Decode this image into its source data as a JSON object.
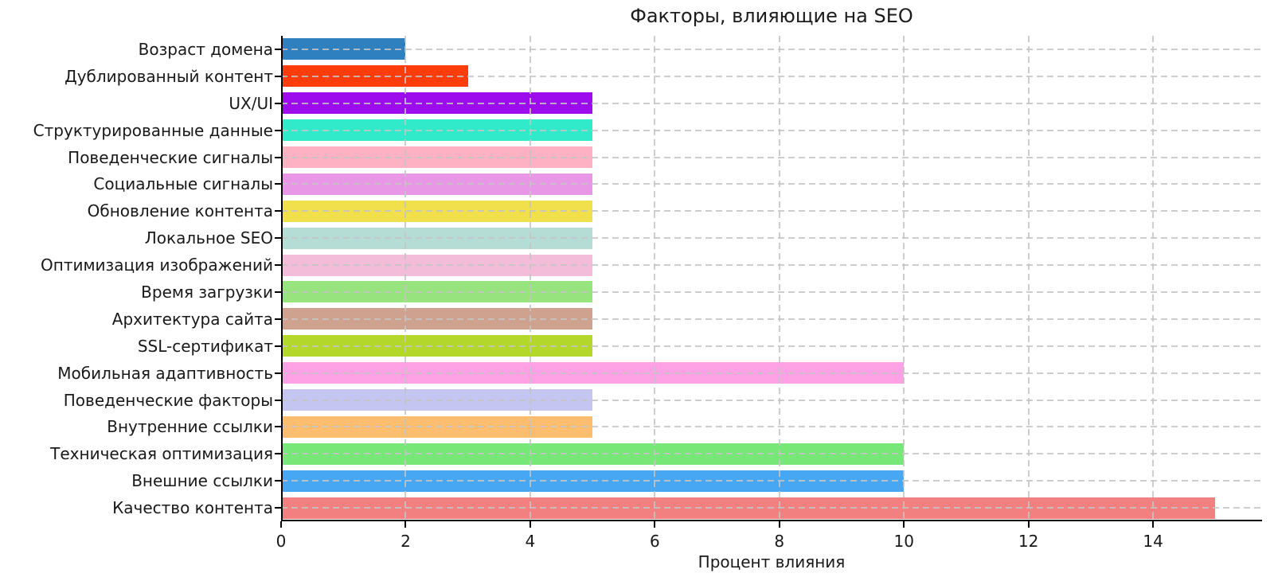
{
  "chart_data": {
    "type": "bar",
    "orientation": "horizontal",
    "title": "Факторы, влияющие на SEO",
    "xlabel": "Процент влияния",
    "ylabel": "",
    "xlim": [
      0,
      15.75
    ],
    "xticks": [
      0,
      2,
      4,
      6,
      8,
      10,
      12,
      14
    ],
    "grid": true,
    "grid_style": "dashed",
    "legend": "none",
    "categories_top_to_bottom": [
      "Возраст домена",
      "Дублированный контент",
      "UX/UI",
      "Структурированные данные",
      "Поведенческие сигналы",
      "Социальные сигналы",
      "Обновление контента",
      "Локальное SEO",
      "Оптимизация изображений",
      "Время загрузки",
      "Архитектура сайта",
      "SSL-сертификат",
      "Мобильная адаптивность",
      "Поведенческие факторы",
      "Внутренние ссылки",
      "Техническая оптимизация",
      "Внешние ссылки",
      "Качество контента"
    ],
    "values": [
      2,
      3,
      5,
      5,
      5,
      5,
      5,
      5,
      5,
      5,
      5,
      5,
      10,
      5,
      5,
      10,
      10,
      15
    ],
    "bar_colors": [
      "#2E81BE",
      "#FE3D0A",
      "#9D0CEC",
      "#30EAC9",
      "#FFB1C4",
      "#E897E6",
      "#F1DF4B",
      "#B5DDD5",
      "#F3BCD8",
      "#97E37D",
      "#CEA28E",
      "#B3D72B",
      "#FFA2E5",
      "#C5C5F1",
      "#FFBE6F",
      "#77E877",
      "#47A7F2",
      "#F28080"
    ],
    "axis_colors": {
      "text": "#191919",
      "spine": "#000000",
      "grid": "#c4c4c4"
    }
  }
}
